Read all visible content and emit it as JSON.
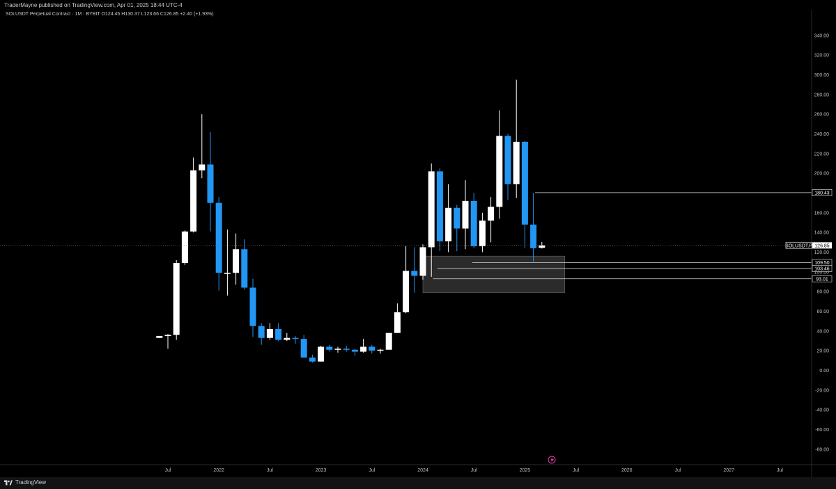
{
  "header": {
    "publisher": "TraderMayne published on TradingView.com, Apr 01, 2025 18:44 UTC-4",
    "symbol_line": "SOLUSDT Perpetual Contract · 1M · BYBIT   O124.45  H130.37  L123.66  C126.85  +2.40 (+1.93%)"
  },
  "footer": {
    "brand": "TradingView"
  },
  "colors": {
    "up": "#ffffff",
    "down": "#2196f3",
    "background": "#000000",
    "zone": "#3a3a3a"
  },
  "chart_data": {
    "type": "candlestick",
    "symbol_tag": "SOLUSDT.P",
    "last_price": 126.85,
    "ylim": [
      -90,
      355
    ],
    "y_ticks": [
      "340.00",
      "320.00",
      "300.00",
      "280.00",
      "260.00",
      "240.00",
      "220.00",
      "200.00",
      "180.00",
      "160.00",
      "140.00",
      "120.00",
      "100.00",
      "80.00",
      "60.00",
      "40.00",
      "20.00",
      "0.00",
      "-20.00",
      "-40.00",
      "-60.00",
      "-80.00"
    ],
    "x_ticks": [
      {
        "label": "Jul",
        "m": 0
      },
      {
        "label": "2022",
        "m": 6
      },
      {
        "label": "Jul",
        "m": 12
      },
      {
        "label": "2023",
        "m": 18
      },
      {
        "label": "Jul",
        "m": 24
      },
      {
        "label": "2024",
        "m": 30
      },
      {
        "label": "Jul",
        "m": 36
      },
      {
        "label": "2025",
        "m": 42
      },
      {
        "label": "Jul",
        "m": 48
      },
      {
        "label": "2026",
        "m": 54
      },
      {
        "label": "Jul",
        "m": 60
      },
      {
        "label": "2027",
        "m": 66
      },
      {
        "label": "Jul",
        "m": 72
      }
    ],
    "first_month": -1,
    "candles": [
      {
        "o": 33,
        "h": 35,
        "l": 33,
        "c": 35
      },
      {
        "o": 35,
        "h": 37,
        "l": 22,
        "c": 36
      },
      {
        "o": 36,
        "h": 112,
        "l": 31,
        "c": 109
      },
      {
        "o": 109,
        "h": 142,
        "l": 107,
        "c": 141
      },
      {
        "o": 141,
        "h": 216,
        "l": 140,
        "c": 203
      },
      {
        "o": 203,
        "h": 260,
        "l": 195,
        "c": 209
      },
      {
        "o": 209,
        "h": 242,
        "l": 141,
        "c": 170
      },
      {
        "o": 170,
        "h": 176,
        "l": 81,
        "c": 99
      },
      {
        "o": 99,
        "h": 143,
        "l": 76,
        "c": 99
      },
      {
        "o": 99,
        "h": 139,
        "l": 87,
        "c": 123
      },
      {
        "o": 123,
        "h": 133,
        "l": 82,
        "c": 84
      },
      {
        "o": 84,
        "h": 93,
        "l": 34,
        "c": 45
      },
      {
        "o": 45,
        "h": 48,
        "l": 26,
        "c": 33
      },
      {
        "o": 33,
        "h": 48,
        "l": 31,
        "c": 42
      },
      {
        "o": 42,
        "h": 48,
        "l": 30,
        "c": 31
      },
      {
        "o": 31,
        "h": 38,
        "l": 30,
        "c": 33
      },
      {
        "o": 33,
        "h": 35,
        "l": 27,
        "c": 32
      },
      {
        "o": 32,
        "h": 36,
        "l": 13,
        "c": 13
      },
      {
        "o": 13,
        "h": 16,
        "l": 8,
        "c": 9
      },
      {
        "o": 9,
        "h": 25,
        "l": 9,
        "c": 24
      },
      {
        "o": 24,
        "h": 26,
        "l": 19,
        "c": 21
      },
      {
        "o": 21,
        "h": 24,
        "l": 18,
        "c": 22
      },
      {
        "o": 22,
        "h": 25,
        "l": 19,
        "c": 21
      },
      {
        "o": 21,
        "h": 22,
        "l": 15,
        "c": 19
      },
      {
        "o": 19,
        "h": 32,
        "l": 18,
        "c": 24
      },
      {
        "o": 24,
        "h": 26,
        "l": 17,
        "c": 20
      },
      {
        "o": 20,
        "h": 22,
        "l": 17,
        "c": 21
      },
      {
        "o": 21,
        "h": 38,
        "l": 21,
        "c": 38
      },
      {
        "o": 38,
        "h": 68,
        "l": 38,
        "c": 59
      },
      {
        "o": 59,
        "h": 126,
        "l": 58,
        "c": 101
      },
      {
        "o": 101,
        "h": 125,
        "l": 79,
        "c": 96
      },
      {
        "o": 96,
        "h": 128,
        "l": 92,
        "c": 125
      },
      {
        "o": 125,
        "h": 210,
        "l": 95,
        "c": 202
      },
      {
        "o": 202,
        "h": 205,
        "l": 121,
        "c": 131
      },
      {
        "o": 131,
        "h": 189,
        "l": 120,
        "c": 165
      },
      {
        "o": 165,
        "h": 168,
        "l": 121,
        "c": 144
      },
      {
        "o": 144,
        "h": 193,
        "l": 123,
        "c": 172
      },
      {
        "o": 172,
        "h": 180,
        "l": 124,
        "c": 126
      },
      {
        "o": 126,
        "h": 160,
        "l": 120,
        "c": 152
      },
      {
        "o": 152,
        "h": 176,
        "l": 130,
        "c": 166
      },
      {
        "o": 166,
        "h": 264,
        "l": 154,
        "c": 238
      },
      {
        "o": 238,
        "h": 240,
        "l": 173,
        "c": 189
      },
      {
        "o": 189,
        "h": 295,
        "l": 175,
        "c": 232
      },
      {
        "o": 232,
        "h": 233,
        "l": 124,
        "c": 148
      },
      {
        "o": 148,
        "h": 180,
        "l": 110,
        "c": 124
      },
      {
        "o": 124.45,
        "h": 130.37,
        "l": 123.66,
        "c": 126.85
      }
    ],
    "zone": {
      "m_start": 30,
      "m_end": 46.7,
      "y_low": 79,
      "y_high": 116
    },
    "levels": [
      {
        "value": 180.43,
        "label": "180.43",
        "m_start": 43.2
      },
      {
        "value": 109.5,
        "label": "109.50",
        "m_start": 35.8
      },
      {
        "value": 103.46,
        "label": "103.46",
        "m_start": 31.7
      },
      {
        "value": 93.01,
        "label": "93.01",
        "m_start": 31.2
      }
    ],
    "right_labels": {
      "last_value": "126.85",
      "static_120": "120.00"
    }
  }
}
